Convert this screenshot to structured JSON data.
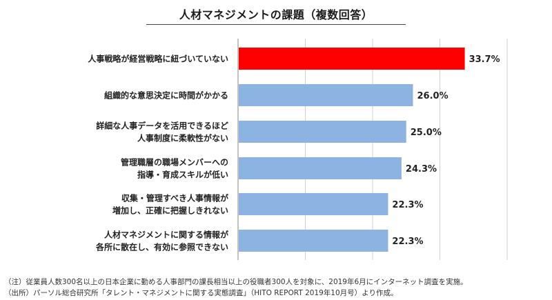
{
  "chart_data": {
    "type": "bar",
    "orientation": "horizontal",
    "title": "人材マネジメントの課題（複数回答）",
    "categories": [
      [
        "人事戦略が経営戦略に紐づいていない"
      ],
      [
        "組織的な意思決定に時間がかかる"
      ],
      [
        "詳細な人事データを活用できるほど",
        "人事制度に柔軟性がない"
      ],
      [
        "管理職層の職場メンバーへの",
        "指導・育成スキルが低い"
      ],
      [
        "収集・管理すべき人事情報が",
        "増加し、正確に把握しきれない"
      ],
      [
        "人材マネジメントに関する情報が",
        "各所に散在し、有効に参照できない"
      ]
    ],
    "values": [
      33.7,
      26.0,
      25.0,
      24.3,
      22.3,
      22.3
    ],
    "value_labels": [
      "33.7%",
      "26.0%",
      "25.0%",
      "24.3%",
      "22.3%",
      "22.3%"
    ],
    "unit": "%",
    "xlim": [
      0,
      40
    ],
    "grid": "vertical gridlines",
    "highlight_index": 0,
    "colors": {
      "highlight": "#ff0000",
      "bar": "#8db3e2",
      "grid": "#d0d0d0",
      "axis": "#9a9a9a"
    }
  },
  "notes": {
    "note1": "（注）従業員人数300名以上の日本企業に勤める人事部門の課長相当以上の役職者300人を対象に、2019年6月にインターネット調査を実施。",
    "note2": "（出所）パーソル総合研究所「タレント・マネジメントに関する実態調査」（HITO REPORT 2019年10月号）より作成。"
  }
}
